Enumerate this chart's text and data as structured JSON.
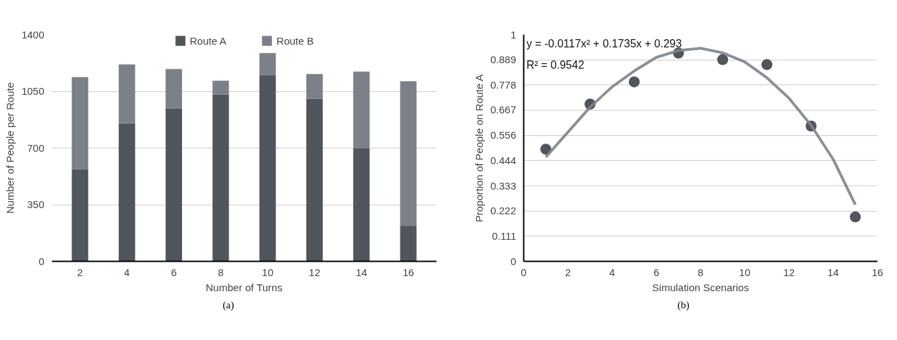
{
  "chart_data": [
    {
      "type": "bar",
      "stacked": true,
      "xlabel": "Number of Turns",
      "ylabel": "Number of People per Route",
      "categories": [
        "2",
        "4",
        "6",
        "8",
        "10",
        "12",
        "14",
        "16"
      ],
      "series": [
        {
          "name": "Route A",
          "color": "#50565c",
          "values": [
            566,
            852,
            945,
            1031,
            1148,
            1004,
            700,
            218
          ]
        },
        {
          "name": "Route B",
          "color": "#7c8088",
          "values": [
            572,
            364,
            243,
            85,
            138,
            153,
            472,
            895
          ]
        }
      ],
      "ylim": [
        0,
        1400
      ],
      "yticks": [
        0,
        350,
        700,
        1050,
        1400
      ],
      "grid": "y",
      "legend": "top",
      "annotations": [
        "(a)"
      ]
    },
    {
      "type": "scatter",
      "xlabel": "Simulation Scenarios",
      "ylabel": "Proportion of People on Route A",
      "marker": "circle",
      "series": [
        {
          "type": "scatter",
          "color": "#50565c",
          "x": [
            1,
            3,
            5,
            7,
            9,
            11,
            13,
            15
          ],
          "values": [
            0.495,
            0.694,
            0.792,
            0.919,
            0.89,
            0.868,
            0.597,
            0.196
          ]
        },
        {
          "type": "line",
          "color": "#7d848c",
          "marker": "none",
          "x": [
            1,
            2,
            3,
            4,
            5,
            6,
            7,
            8,
            9,
            10,
            11,
            12,
            13,
            14,
            15
          ],
          "values": [
            0.46,
            0.57,
            0.68,
            0.77,
            0.84,
            0.9,
            0.93,
            0.94,
            0.92,
            0.88,
            0.81,
            0.72,
            0.6,
            0.45,
            0.25
          ]
        }
      ],
      "xlim": [
        0,
        16
      ],
      "xticks": [
        0,
        2,
        4,
        6,
        8,
        10,
        12,
        14,
        16
      ],
      "ylim": [
        0,
        1
      ],
      "yticks": [
        0,
        0.111,
        0.222,
        0.333,
        0.444,
        0.556,
        0.667,
        0.778,
        0.889,
        1
      ],
      "grid": "y",
      "annotations": [
        "y = -0.0117x² + 0.1735x + 0.293",
        "R² = 0.9542",
        "(b)"
      ]
    }
  ]
}
